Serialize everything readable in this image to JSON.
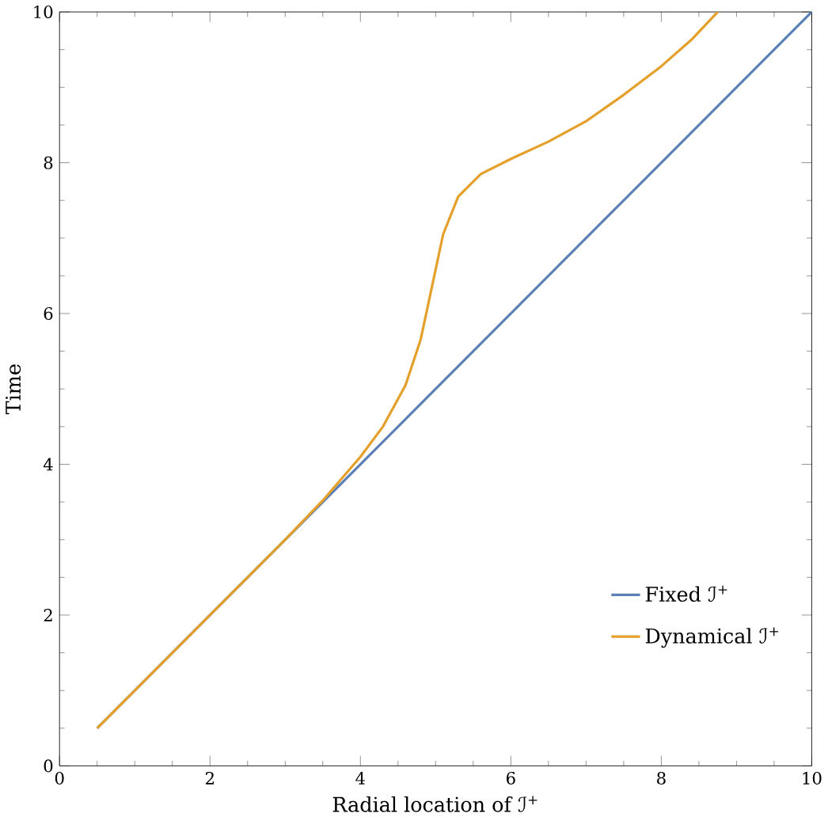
{
  "chart_data": {
    "type": "line",
    "xlabel": "Radial location of ℐ$^{+}$",
    "ylabel": "Time",
    "xlim": [
      0,
      10
    ],
    "ylim": [
      0,
      10
    ],
    "xticks": [
      0,
      2,
      4,
      6,
      8,
      10
    ],
    "yticks": [
      0,
      2,
      4,
      6,
      8,
      10
    ],
    "legend": "bottom right",
    "grid": false,
    "series": [
      {
        "name": "Fixed ℐ$^{+}$",
        "color": "#5a80b5",
        "x": [
          0.5,
          10
        ],
        "values": [
          0.5,
          10
        ]
      },
      {
        "name": "Dynamical ℐ$^{+}$",
        "color": "#e4a02a",
        "x": [
          0.5,
          1,
          2,
          3,
          3.5,
          4,
          4.3,
          4.6,
          4.8,
          4.95,
          5.1,
          5.3,
          5.6,
          6,
          6.5,
          7,
          7.5,
          8,
          8.4,
          8.75
        ],
        "values": [
          0.5,
          1,
          2,
          3,
          3.52,
          4.1,
          4.5,
          5.05,
          5.65,
          6.35,
          7.05,
          7.55,
          7.85,
          8.05,
          8.28,
          8.55,
          8.9,
          9.28,
          9.63,
          10
        ]
      }
    ]
  }
}
